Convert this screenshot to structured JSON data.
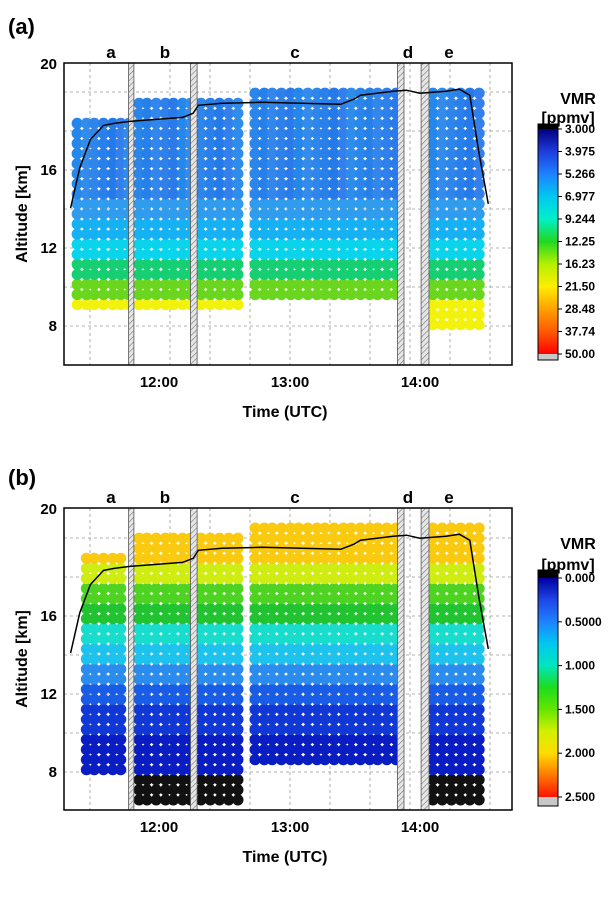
{
  "chart_data": [
    {
      "panel_label": "(a)",
      "type": "scatter",
      "xlabel": "Time (UTC)",
      "ylabel": "Altitude [km]",
      "xlim": [
        11.3,
        14.7
      ],
      "ylim": [
        5,
        20
      ],
      "x_ticks": [
        12,
        13,
        14
      ],
      "x_tick_labels": [
        "12:00",
        "13:00",
        "14:00"
      ],
      "y_ticks": [
        8,
        12,
        16,
        20
      ],
      "y_tick_labels": [
        "8",
        "12",
        "16",
        "20"
      ],
      "grid": true,
      "segment_labels": [
        {
          "text": "a",
          "x": 11.73
        },
        {
          "text": "b",
          "x": 12.06
        },
        {
          "text": "c",
          "x": 12.97
        },
        {
          "text": "d",
          "x": 13.91
        },
        {
          "text": "e",
          "x": 14.25
        }
      ],
      "excluded_intervals": [
        [
          11.79,
          11.83
        ],
        [
          12.26,
          12.31
        ],
        [
          13.83,
          13.88
        ],
        [
          14.01,
          14.07
        ]
      ],
      "flight_altitude": {
        "x": [
          11.35,
          11.42,
          11.5,
          11.6,
          11.68,
          11.8,
          12.0,
          12.2,
          12.28,
          12.32,
          12.5,
          12.8,
          13.1,
          13.4,
          13.5,
          13.55,
          13.8,
          13.9,
          14.0,
          14.1,
          14.2,
          14.3,
          14.38,
          14.45,
          14.52
        ],
        "y": [
          12.8,
          14.8,
          16.2,
          16.9,
          17.0,
          17.1,
          17.2,
          17.3,
          17.5,
          17.9,
          18.0,
          18.05,
          18.0,
          17.95,
          18.2,
          18.4,
          18.6,
          18.65,
          18.5,
          18.55,
          18.6,
          18.7,
          18.4,
          15.5,
          13.0
        ]
      },
      "colorbar": {
        "title_line1": "VMR",
        "title_line2": "[ppmv]",
        "tick_labels": [
          "3.000",
          "3.975",
          "5.266",
          "6.977",
          "9.244",
          "12.25",
          "16.23",
          "21.50",
          "28.48",
          "37.74",
          "50.00"
        ]
      },
      "profiles": [
        {
          "segment": "a",
          "x": [
            11.4,
            11.47,
            11.53,
            11.6,
            11.67,
            11.73,
            11.79
          ],
          "alt_range": [
            8.0,
            17.0
          ]
        },
        {
          "segment": "b",
          "x": [
            11.87,
            11.93,
            12.0,
            12.07,
            12.13,
            12.2,
            12.26,
            12.34,
            12.41,
            12.48,
            12.55,
            12.62
          ],
          "alt_range": [
            8.0,
            18.0
          ]
        },
        {
          "segment": "c",
          "x": [
            12.75,
            12.82,
            12.88,
            12.95,
            13.02,
            13.08,
            13.15,
            13.22,
            13.28,
            13.35,
            13.42,
            13.48,
            13.55,
            13.62,
            13.68,
            13.75,
            13.82
          ],
          "alt_range": [
            8.5,
            18.5
          ]
        },
        {
          "segment": "e",
          "x": [
            14.1,
            14.17,
            14.24,
            14.31,
            14.38,
            14.45
          ],
          "alt_range": [
            7.0,
            18.5
          ]
        }
      ]
    },
    {
      "panel_label": "(b)",
      "type": "scatter",
      "xlabel": "Time (UTC)",
      "ylabel": "Altitude [km]",
      "xlim": [
        11.3,
        14.7
      ],
      "ylim": [
        5,
        20
      ],
      "x_ticks": [
        12,
        13,
        14
      ],
      "x_tick_labels": [
        "12:00",
        "13:00",
        "14:00"
      ],
      "y_ticks": [
        8,
        12,
        16,
        20
      ],
      "y_tick_labels": [
        "8",
        "12",
        "16",
        "20"
      ],
      "grid": true,
      "segment_labels": [
        {
          "text": "a",
          "x": 11.73
        },
        {
          "text": "b",
          "x": 12.06
        },
        {
          "text": "c",
          "x": 12.97
        },
        {
          "text": "d",
          "x": 13.91
        },
        {
          "text": "e",
          "x": 14.25
        }
      ],
      "excluded_intervals": [
        [
          11.79,
          11.83
        ],
        [
          12.26,
          12.31
        ],
        [
          13.83,
          13.88
        ],
        [
          14.01,
          14.07
        ]
      ],
      "flight_altitude": {
        "x": [
          11.35,
          11.42,
          11.5,
          11.6,
          11.68,
          11.8,
          12.0,
          12.2,
          12.28,
          12.32,
          12.5,
          12.8,
          13.1,
          13.4,
          13.5,
          13.55,
          13.8,
          13.9,
          14.0,
          14.1,
          14.2,
          14.3,
          14.38,
          14.45,
          14.52
        ],
        "y": [
          12.8,
          14.8,
          16.2,
          16.9,
          17.0,
          17.1,
          17.2,
          17.3,
          17.5,
          17.9,
          18.0,
          18.05,
          18.0,
          17.95,
          18.2,
          18.4,
          18.6,
          18.65,
          18.5,
          18.55,
          18.6,
          18.7,
          18.4,
          15.5,
          13.0
        ]
      },
      "colorbar": {
        "title_line1": "VMR",
        "title_line2": "[ppmv]",
        "tick_labels": [
          "0.000",
          "0.5000",
          "1.000",
          "1.500",
          "2.000",
          "2.500"
        ]
      },
      "profiles": [
        {
          "segment": "a",
          "x": [
            11.47,
            11.53,
            11.6,
            11.67,
            11.73
          ],
          "alt_range": [
            7.0,
            17.5
          ]
        },
        {
          "segment": "b",
          "x": [
            11.87,
            11.93,
            12.0,
            12.07,
            12.13,
            12.2,
            12.26,
            12.34,
            12.41,
            12.48,
            12.55,
            12.62
          ],
          "alt_range": [
            5.5,
            18.5
          ]
        },
        {
          "segment": "c",
          "x": [
            12.75,
            12.82,
            12.88,
            12.95,
            13.02,
            13.08,
            13.15,
            13.22,
            13.28,
            13.35,
            13.42,
            13.48,
            13.55,
            13.62,
            13.68,
            13.75,
            13.82
          ],
          "alt_range": [
            7.5,
            19.0
          ]
        },
        {
          "segment": "e",
          "x": [
            14.1,
            14.17,
            14.24,
            14.31,
            14.38,
            14.45
          ],
          "alt_range": [
            5.5,
            19.0
          ]
        }
      ]
    }
  ]
}
